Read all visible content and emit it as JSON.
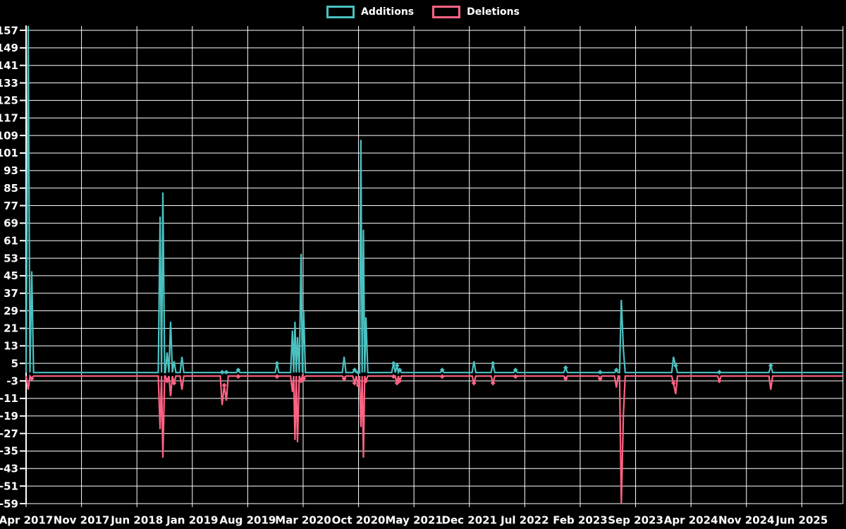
{
  "legend": {
    "items": [
      {
        "label": "Additions",
        "color": "#4BC0C0"
      },
      {
        "label": "Deletions",
        "color": "#FF6384"
      }
    ]
  },
  "colors": {
    "background": "#000000",
    "grid": "#ffffff",
    "axis": "#ffffff",
    "text": "#ffffff",
    "additions": "#4BC0C0",
    "deletions": "#FF6384"
  },
  "chart_data": {
    "type": "line",
    "title": "",
    "xlabel": "",
    "ylabel": "",
    "grid": "on",
    "legend_position": "top-center",
    "point_style": "diamond-on-small-values",
    "x_axis": {
      "unit": "months-since-Apr-2017",
      "tick_labels": [
        "Apr 2017",
        "Nov 2017",
        "Jun 2018",
        "Jan 2019",
        "Aug 2019",
        "Mar 2020",
        "Oct 2020",
        "May 2021",
        "Dec 2021",
        "Jul 2022",
        "Feb 2023",
        "Sep 2023",
        "Apr 2024",
        "Nov 2024",
        "Jun 2025"
      ],
      "tick_month_offsets": [
        0,
        7,
        14,
        21,
        28,
        35,
        42,
        49,
        56,
        63,
        70,
        77,
        84,
        91,
        98
      ],
      "range_months": [
        0,
        103.2
      ]
    },
    "y_axis": {
      "tick_values": [
        157,
        149,
        141,
        133,
        125,
        117,
        109,
        101,
        93,
        85,
        77,
        69,
        61,
        53,
        45,
        37,
        29,
        21,
        13,
        5,
        -3,
        -11,
        -19,
        -27,
        -35,
        -43,
        -51,
        -59
      ],
      "min": -59,
      "max": 157,
      "tick_step": 8
    },
    "series": [
      {
        "name": "Additions",
        "color": "#4BC0C0",
        "baseline": 0.8,
        "spikes": [
          [
            0.27,
            159
          ],
          [
            0.71,
            47
          ],
          [
            16.93,
            72
          ],
          [
            17.28,
            83
          ],
          [
            17.82,
            10
          ],
          [
            18.26,
            24
          ],
          [
            18.7,
            6
          ],
          [
            19.69,
            8
          ],
          [
            24.77,
            1
          ],
          [
            25.3,
            1
          ],
          [
            26.8,
            2
          ],
          [
            31.7,
            5
          ],
          [
            33.65,
            20
          ],
          [
            33.97,
            24
          ],
          [
            34.29,
            17
          ],
          [
            34.74,
            55
          ],
          [
            35.06,
            29
          ],
          [
            40.18,
            8
          ],
          [
            41.5,
            2
          ],
          [
            41.96,
            1
          ],
          [
            42.3,
            107
          ],
          [
            42.62,
            66
          ],
          [
            42.94,
            26
          ],
          [
            46.42,
            5
          ],
          [
            46.86,
            4
          ],
          [
            47.2,
            2
          ],
          [
            52.57,
            2
          ],
          [
            56.58,
            6
          ],
          [
            58.98,
            5
          ],
          [
            61.83,
            2
          ],
          [
            68.16,
            3
          ],
          [
            72.52,
            1
          ],
          [
            74.57,
            2
          ],
          [
            75.2,
            34
          ],
          [
            75.46,
            11
          ],
          [
            81.79,
            8
          ],
          [
            82.06,
            4
          ],
          [
            87.58,
            1
          ],
          [
            94.08,
            4
          ]
        ]
      },
      {
        "name": "Deletions",
        "color": "#FF6384",
        "baseline": -0.8,
        "spikes": [
          [
            0.27,
            -7
          ],
          [
            0.71,
            -2
          ],
          [
            16.93,
            -25
          ],
          [
            17.28,
            -38
          ],
          [
            17.82,
            -3
          ],
          [
            18.26,
            -10
          ],
          [
            18.7,
            -4
          ],
          [
            19.69,
            -7
          ],
          [
            24.77,
            -14
          ],
          [
            25.03,
            -5
          ],
          [
            25.3,
            -12
          ],
          [
            26.8,
            -1
          ],
          [
            31.7,
            -1
          ],
          [
            33.65,
            -8
          ],
          [
            33.97,
            -30
          ],
          [
            34.29,
            -31
          ],
          [
            34.74,
            -3
          ],
          [
            35.06,
            -2
          ],
          [
            40.18,
            -2
          ],
          [
            41.5,
            -4
          ],
          [
            41.96,
            -5
          ],
          [
            42.3,
            -24
          ],
          [
            42.62,
            -38
          ],
          [
            42.94,
            -3
          ],
          [
            46.42,
            -1
          ],
          [
            46.86,
            -4
          ],
          [
            47.2,
            -3
          ],
          [
            52.57,
            -1
          ],
          [
            56.58,
            -4
          ],
          [
            58.98,
            -4
          ],
          [
            61.83,
            -1
          ],
          [
            68.16,
            -2
          ],
          [
            72.52,
            -2
          ],
          [
            74.57,
            -6
          ],
          [
            75.2,
            -59
          ],
          [
            75.46,
            -18
          ],
          [
            81.79,
            -4
          ],
          [
            82.06,
            -9
          ],
          [
            87.58,
            -3
          ],
          [
            94.08,
            -7
          ]
        ]
      }
    ]
  }
}
